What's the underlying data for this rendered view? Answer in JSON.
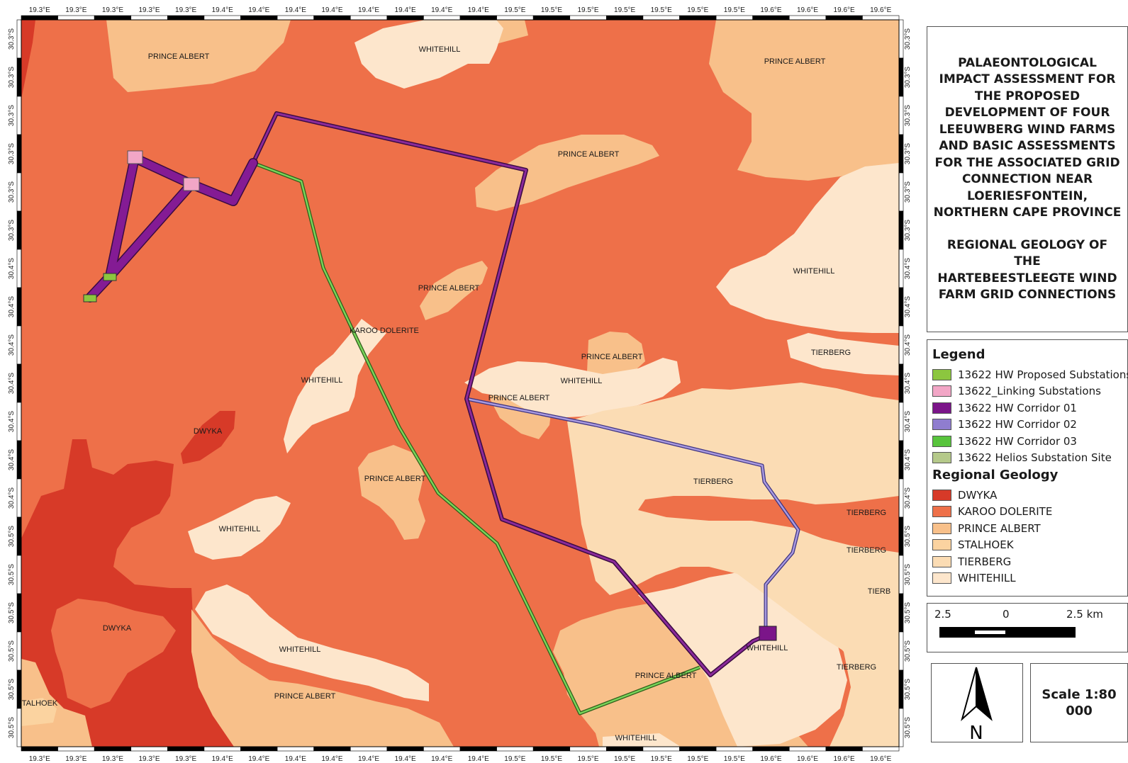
{
  "colors": {
    "dwyka": "#d73a28",
    "karoo_dolerite": "#ee7049",
    "prince_albert": "#f8c08a",
    "stalhoek": "#fbd9a8",
    "tierberg": "#fbdcb4",
    "whitehill": "#fde6cc",
    "corridor_01": "#7b1589",
    "corridor_02": "#8f7dcf",
    "corridor_03": "#58b52c",
    "proposed_substation": "#8cc63f",
    "linking_substation": "#f2a6c6",
    "helios_substation": "#b5c98a"
  },
  "graticule": {
    "top_x_labels": [
      "19.3°E",
      "19.3°E",
      "19.3°E",
      "19.3°E",
      "19.3°E",
      "19.4°E",
      "19.4°E",
      "19.4°E",
      "19.4°E",
      "19.4°E",
      "19.4°E",
      "19.4°E",
      "19.4°E",
      "19.5°E",
      "19.5°E",
      "19.5°E",
      "19.5°E",
      "19.5°E",
      "19.5°E",
      "19.5°E",
      "19.6°E",
      "19.6°E",
      "19.6°E",
      "19.6°E"
    ],
    "bottom_x_labels": [
      "19.3°E",
      "19.3°E",
      "19.3°E",
      "19.3°E",
      "19.3°E",
      "19.4°E",
      "19.4°E",
      "19.4°E",
      "19.4°E",
      "19.4°E",
      "19.4°E",
      "19.4°E",
      "19.4°E",
      "19.5°E",
      "19.5°E",
      "19.5°E",
      "19.5°E",
      "19.5°E",
      "19.5°E",
      "19.5°E",
      "19.6°E",
      "19.6°E",
      "19.6°E",
      "19.6°E"
    ],
    "y_labels": [
      "30.3°S",
      "30.3°S",
      "30.3°S",
      "30.3°S",
      "30.3°S",
      "30.3°S",
      "30.4°S",
      "30.4°S",
      "30.4°S",
      "30.4°S",
      "30.4°S",
      "30.4°S",
      "30.4°S",
      "30.5°S",
      "30.5°S",
      "30.5°S",
      "30.5°S",
      "30.5°S",
      "30.5°S"
    ]
  },
  "map_labels": [
    "PRINCE ALBERT",
    "WHITEHILL",
    "PRINCE ALBERT",
    "PRINCE ALBERT",
    "WHITEHILL",
    "PRINCE ALBERT",
    "KAROO DOLERITE",
    "WHITEHILL",
    "PRINCE ALBERT",
    "TIERBERG",
    "WHITEHILL",
    "PRINCE ALBERT",
    "DWYKA",
    "PRINCE ALBERT",
    "TIERBERG",
    "WHITEHILL",
    "TIERBERG",
    "TIERBERG",
    "TIERB",
    "DWYKA",
    "WHITEHILL",
    "WHITEHILL",
    "TIERBERG",
    "PRINCE ALBERT",
    "PRINCE ALBERT",
    "TALHOEK",
    "WHITEHILL"
  ],
  "title": {
    "line1": "PALAEONTOLOGICAL",
    "line2": "IMPACT ASSESSMENT FOR",
    "line3": "THE PROPOSED",
    "line4": "DEVELOPMENT OF FOUR",
    "line5": "LEEUWBERG WIND FARMS",
    "line6": "AND BASIC ASSESSMENTS",
    "line7": "FOR THE ASSOCIATED GRID",
    "line8": "CONNECTION NEAR",
    "line9": "LOERIESFONTEIN,",
    "line10": "NORTHERN CAPE PROVINCE",
    "line11": "REGIONAL GEOLOGY OF",
    "line12": "THE",
    "line13": "HARTEBEESTLEEGTE WIND",
    "line14": "FARM GRID CONNECTIONS"
  },
  "legend": {
    "heading": "Legend",
    "items": [
      {
        "label": "13622 HW Proposed Substations",
        "color": "#8cc63f"
      },
      {
        "label": "13622_Linking Substations",
        "color": "#f2a6c6"
      },
      {
        "label": "13622 HW Corridor 01",
        "color": "#7b1589"
      },
      {
        "label": "13622 HW Corridor 02",
        "color": "#8f7dcf"
      },
      {
        "label": "13622 HW Corridor 03",
        "color": "#58c43c"
      },
      {
        "label": "13622 Helios Substation Site",
        "color": "#b5c98a"
      }
    ],
    "geology_heading": "Regional Geology",
    "geology": [
      {
        "label": "DWYKA",
        "color": "#d73a28"
      },
      {
        "label": "KAROO DOLERITE",
        "color": "#ee7049"
      },
      {
        "label": "PRINCE ALBERT",
        "color": "#f8c08a"
      },
      {
        "label": "STALHOEK",
        "color": "#fbd3a0"
      },
      {
        "label": "TIERBERG",
        "color": "#fbdcb4"
      },
      {
        "label": "WHITEHILL",
        "color": "#fde6cc"
      }
    ]
  },
  "scalebar": {
    "left": "2.5",
    "mid": "0",
    "right": "2.5 km"
  },
  "north": {
    "letter": "N"
  },
  "scale_text": "Scale 1:80 000"
}
